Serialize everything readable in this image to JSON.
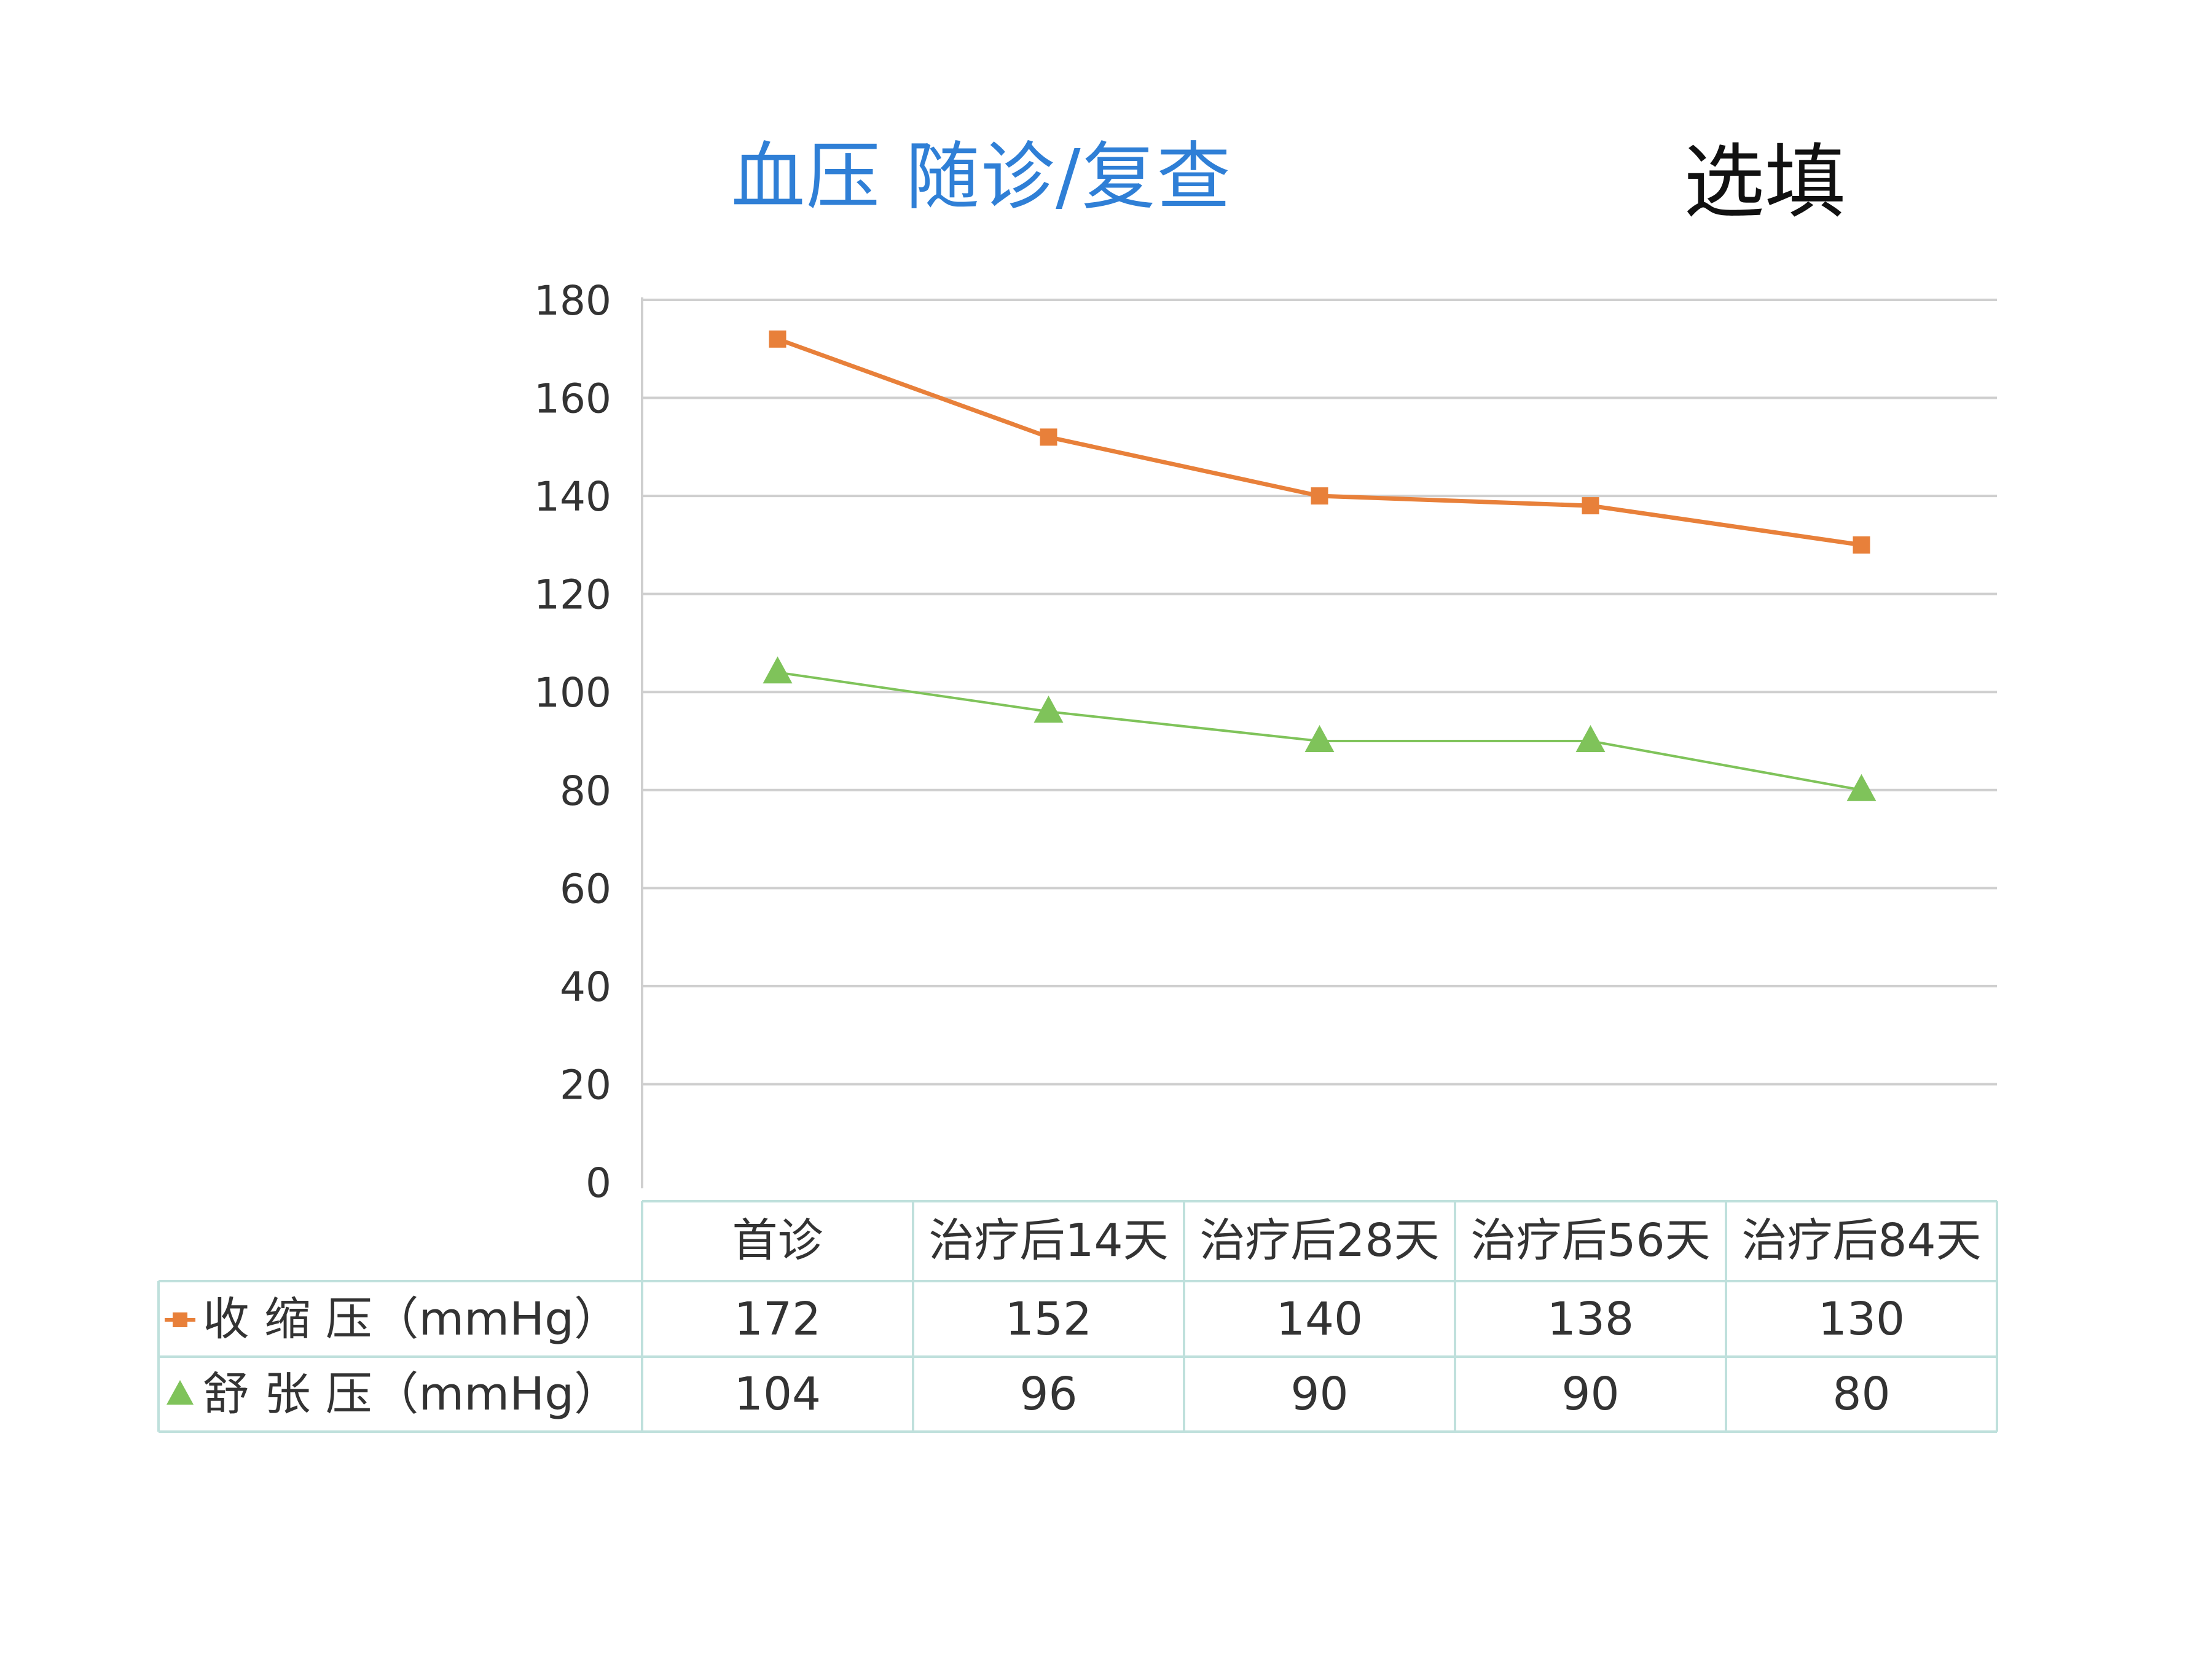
{
  "title": "血压 随诊/复查",
  "subtitle": "选填",
  "colors": {
    "systolic": "#e8803a",
    "diastolic": "#7fc35a",
    "grid": "#cfcfcf",
    "table_border": "#bfe0dc",
    "tick_text": "#333333",
    "title": "#2f7fd6"
  },
  "chart_data": {
    "type": "line",
    "categories": [
      "首诊",
      "治疗后14天",
      "治疗后28天",
      "治疗后56天",
      "治疗后84天"
    ],
    "ylim": [
      0,
      180
    ],
    "yticks": [
      0,
      20,
      40,
      60,
      80,
      100,
      120,
      140,
      160,
      180
    ],
    "grid": true,
    "legend": "data-table-left",
    "series": [
      {
        "name": "收 缩 压（mmHg）",
        "marker": "square",
        "color": "#e8803a",
        "values": [
          172,
          152,
          140,
          138,
          130
        ]
      },
      {
        "name": "舒 张 压（mmHg）",
        "marker": "triangle",
        "color": "#7fc35a",
        "values": [
          104,
          96,
          90,
          90,
          80
        ]
      }
    ]
  }
}
